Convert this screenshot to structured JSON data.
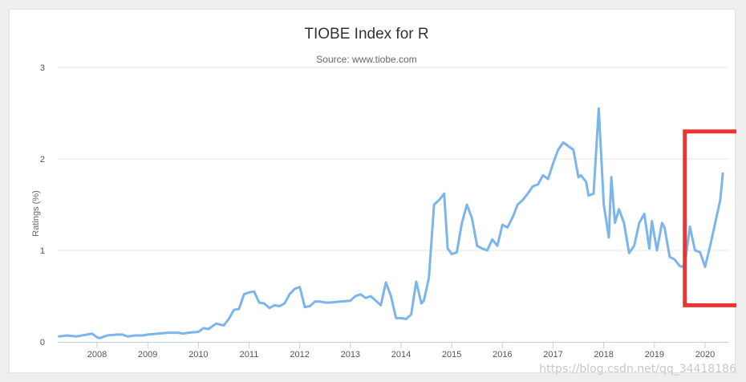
{
  "chart_data": {
    "type": "line",
    "title": "TIOBE Index for R",
    "subtitle": "Source: www.tiobe.com",
    "ylabel": "Ratings (%)",
    "xlabel": "",
    "ylim": [
      0,
      3
    ],
    "y_ticks": [
      "0",
      "1",
      "2",
      "3"
    ],
    "x_ticks": [
      {
        "year": 2008,
        "label": "2008"
      },
      {
        "year": 2009,
        "label": "2009"
      },
      {
        "year": 2010,
        "label": "2010"
      },
      {
        "year": 2011,
        "label": "2011"
      },
      {
        "year": 2012,
        "label": "2012"
      },
      {
        "year": 2013,
        "label": "2013"
      },
      {
        "year": 2014,
        "label": "2014"
      },
      {
        "year": 2015,
        "label": "2015"
      },
      {
        "year": 2016,
        "label": "2016"
      },
      {
        "year": 2017,
        "label": "2017"
      },
      {
        "year": 2018,
        "label": "2018"
      },
      {
        "year": 2019,
        "label": "2019"
      },
      {
        "year": 2020,
        "label": "2020"
      }
    ],
    "grid": true,
    "legend": "none",
    "line_color": "#7cb5ec",
    "highlight_color": "#ee3333",
    "highlight_range": {
      "x": [
        2019.6,
        2020.7
      ],
      "y": [
        0.4,
        2.3
      ]
    },
    "series": [
      {
        "x": [
          2007.25,
          2007.4,
          2007.6,
          2007.8,
          2007.9,
          2008.0,
          2008.05,
          2008.2,
          2008.4,
          2008.5,
          2008.6,
          2008.75,
          2008.9,
          2009.0,
          2009.2,
          2009.4,
          2009.6,
          2009.7,
          2009.8,
          2010.0,
          2010.1,
          2010.2,
          2010.35,
          2010.5,
          2010.6,
          2010.7,
          2010.8,
          2010.9,
          2011.0,
          2011.1,
          2011.2,
          2011.3,
          2011.4,
          2011.5,
          2011.6,
          2011.7,
          2011.8,
          2011.9,
          2012.0,
          2012.1,
          2012.2,
          2012.3,
          2012.4,
          2012.5,
          2012.6,
          2012.8,
          2013.0,
          2013.1,
          2013.2,
          2013.3,
          2013.4,
          2013.5,
          2013.6,
          2013.7,
          2013.8,
          2013.9,
          2014.0,
          2014.1,
          2014.2,
          2014.3,
          2014.4,
          2014.45,
          2014.55,
          2014.65,
          2014.75,
          2014.85,
          2014.92,
          2015.0,
          2015.1,
          2015.2,
          2015.3,
          2015.4,
          2015.5,
          2015.6,
          2015.7,
          2015.8,
          2015.9,
          2016.0,
          2016.1,
          2016.2,
          2016.3,
          2016.4,
          2016.5,
          2016.6,
          2016.7,
          2016.8,
          2016.9,
          2017.0,
          2017.1,
          2017.2,
          2017.3,
          2017.4,
          2017.5,
          2017.55,
          2017.65,
          2017.7,
          2017.8,
          2017.9,
          2018.0,
          2018.1,
          2018.15,
          2018.22,
          2018.3,
          2018.4,
          2018.5,
          2018.6,
          2018.7,
          2018.8,
          2018.9,
          2018.95,
          2019.05,
          2019.15,
          2019.2,
          2019.3,
          2019.4,
          2019.5,
          2019.55,
          2019.6,
          2019.7,
          2019.8,
          2019.9,
          2020.0,
          2020.1,
          2020.2,
          2020.3,
          2020.35
        ],
        "values": [
          0.06,
          0.07,
          0.06,
          0.08,
          0.09,
          0.05,
          0.04,
          0.07,
          0.08,
          0.08,
          0.06,
          0.07,
          0.07,
          0.08,
          0.09,
          0.1,
          0.1,
          0.09,
          0.1,
          0.11,
          0.15,
          0.14,
          0.2,
          0.18,
          0.25,
          0.35,
          0.36,
          0.52,
          0.54,
          0.55,
          0.43,
          0.42,
          0.37,
          0.4,
          0.39,
          0.42,
          0.52,
          0.58,
          0.6,
          0.38,
          0.39,
          0.44,
          0.44,
          0.43,
          0.43,
          0.44,
          0.45,
          0.5,
          0.52,
          0.48,
          0.5,
          0.45,
          0.4,
          0.65,
          0.5,
          0.26,
          0.26,
          0.25,
          0.3,
          0.66,
          0.42,
          0.45,
          0.7,
          1.5,
          1.55,
          1.62,
          1.02,
          0.96,
          0.98,
          1.3,
          1.5,
          1.35,
          1.05,
          1.02,
          1.0,
          1.12,
          1.05,
          1.28,
          1.25,
          1.36,
          1.5,
          1.55,
          1.62,
          1.7,
          1.72,
          1.82,
          1.78,
          1.95,
          2.1,
          2.18,
          2.14,
          2.1,
          1.8,
          1.82,
          1.75,
          1.6,
          1.62,
          2.55,
          1.5,
          1.14,
          1.8,
          1.3,
          1.45,
          1.3,
          0.97,
          1.05,
          1.3,
          1.4,
          1.02,
          1.32,
          1.0,
          1.3,
          1.25,
          0.93,
          0.9,
          0.83,
          0.82,
          0.85,
          1.26,
          1.0,
          0.98,
          0.82,
          1.05,
          1.3,
          1.55,
          1.84
        ]
      }
    ]
  },
  "watermark": "https://blog.csdn.net/qq_34418186"
}
